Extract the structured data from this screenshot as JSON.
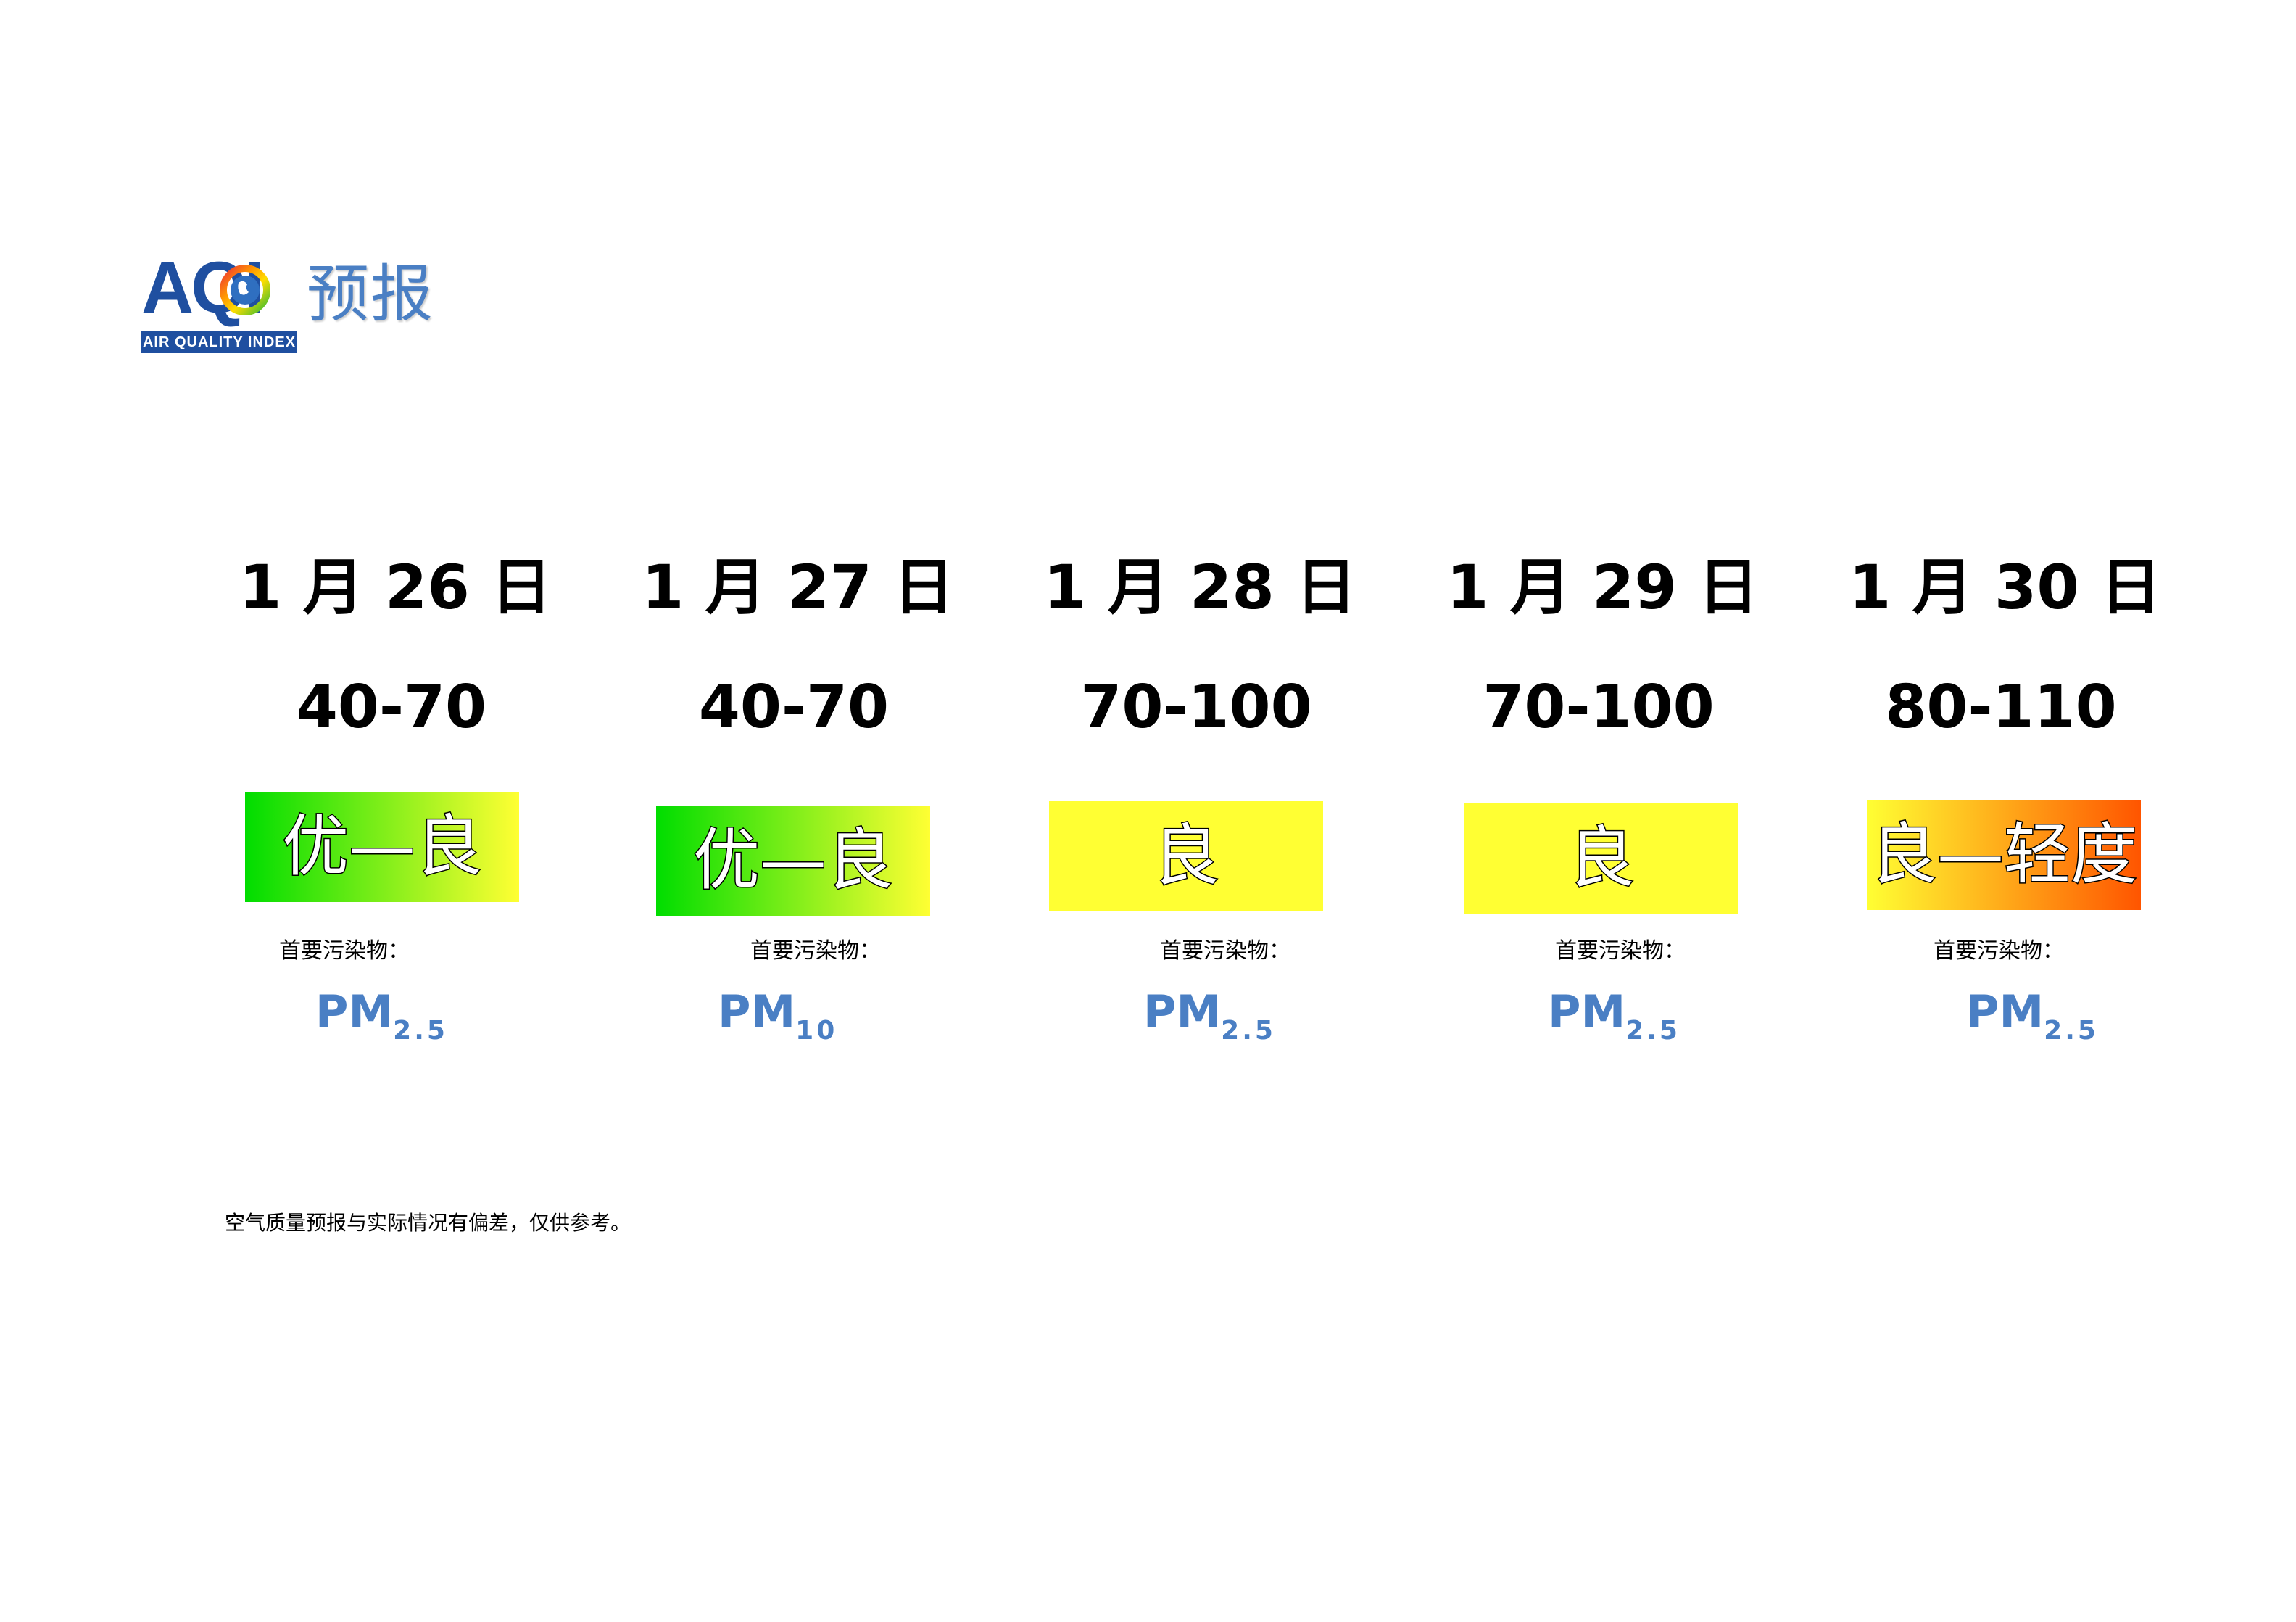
{
  "header": {
    "logo_letters": "AQI",
    "logo_band": "AIR QUALITY INDEX",
    "title": "预报"
  },
  "days": [
    {
      "date": "1 月 26 日",
      "aqi_range": "40-70",
      "level": "优—良",
      "level_colors": [
        "#00dd00",
        "#ffff33"
      ],
      "pollutant_label": "首要污染物：",
      "pollutant_main": "PM",
      "pollutant_sub": "2.5"
    },
    {
      "date": "1 月 27 日",
      "aqi_range": "40-70",
      "level": "优—良",
      "level_colors": [
        "#00dd00",
        "#ffff33"
      ],
      "pollutant_label": "首要污染物：",
      "pollutant_main": "PM",
      "pollutant_sub": "10"
    },
    {
      "date": "1 月 28 日",
      "aqi_range": "70-100",
      "level": "良",
      "level_colors": [
        "#ffff33",
        "#ffff33"
      ],
      "pollutant_label": "首要污染物：",
      "pollutant_main": "PM",
      "pollutant_sub": "2.5"
    },
    {
      "date": "1 月 29 日",
      "aqi_range": "70-100",
      "level": "良",
      "level_colors": [
        "#ffff33",
        "#ffff33"
      ],
      "pollutant_label": "首要污染物：",
      "pollutant_main": "PM",
      "pollutant_sub": "2.5"
    },
    {
      "date": "1 月 30 日",
      "aqi_range": "80-110",
      "level": "良—轻度",
      "level_colors": [
        "#ffff33",
        "#ff5500"
      ],
      "pollutant_label": "首要污染物：",
      "pollutant_main": "PM",
      "pollutant_sub": "2.5"
    }
  ],
  "note": "空气质量预报与实际情况有偏差，仅供参考。"
}
